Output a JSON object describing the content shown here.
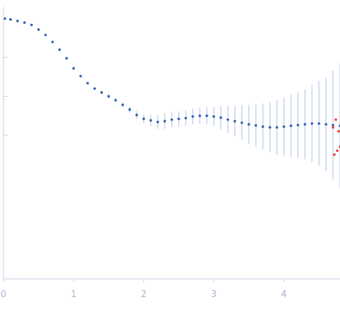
{
  "chart_data": {
    "type": "scatter",
    "title": "",
    "xlabel": "",
    "ylabel": "",
    "xlim": [
      0,
      4.8
    ],
    "ylim": [
      -6.7,
      0.3
    ],
    "y_scale": "log",
    "grid": false,
    "legend": "none",
    "x_ticks": [
      0,
      1,
      2,
      3,
      4
    ],
    "x_tick_labels": [
      "0",
      "1",
      "2",
      "3",
      "4"
    ],
    "y_ticks": [
      -1,
      -2,
      -3
    ],
    "colors": {
      "points": "#2e5fb5",
      "error_bars": "#a9bfe0",
      "outliers": "#e8413a",
      "axis": "#c7cfe0",
      "tick_label": "#a9b6cf"
    },
    "series": [
      {
        "role": "measured",
        "color": "#2e5fb5",
        "x": [
          0.02,
          0.1,
          0.2,
          0.3,
          0.4,
          0.5,
          0.6,
          0.7,
          0.8,
          0.9,
          1.0,
          1.1,
          1.2,
          1.3,
          1.4,
          1.5,
          1.6,
          1.7,
          1.8,
          1.9,
          2.0,
          2.1,
          2.2,
          2.3,
          2.4,
          2.5,
          2.6,
          2.7,
          2.8,
          2.9,
          3.0,
          3.1,
          3.2,
          3.3,
          3.4,
          3.5,
          3.6,
          3.7,
          3.8,
          3.9,
          4.0,
          4.1,
          4.2,
          4.3,
          4.4,
          4.5,
          4.6,
          4.7,
          4.8
        ],
        "y": [
          0.0,
          -0.02,
          -0.06,
          -0.1,
          -0.16,
          -0.28,
          -0.42,
          -0.6,
          -0.8,
          -1.02,
          -1.28,
          -1.48,
          -1.66,
          -1.8,
          -1.9,
          -2.0,
          -2.1,
          -2.22,
          -2.34,
          -2.48,
          -2.58,
          -2.62,
          -2.66,
          -2.64,
          -2.6,
          -2.58,
          -2.56,
          -2.52,
          -2.5,
          -2.5,
          -2.52,
          -2.55,
          -2.6,
          -2.64,
          -2.68,
          -2.72,
          -2.75,
          -2.78,
          -2.8,
          -2.8,
          -2.78,
          -2.76,
          -2.74,
          -2.72,
          -2.7,
          -2.7,
          -2.72,
          -2.74,
          -2.76
        ],
        "y_err": [
          0.01,
          0.01,
          0.01,
          0.01,
          0.01,
          0.01,
          0.01,
          0.01,
          0.02,
          0.02,
          0.02,
          0.02,
          0.03,
          0.03,
          0.04,
          0.05,
          0.06,
          0.07,
          0.08,
          0.1,
          0.12,
          0.15,
          0.18,
          0.2,
          0.2,
          0.2,
          0.2,
          0.2,
          0.2,
          0.22,
          0.25,
          0.3,
          0.35,
          0.4,
          0.45,
          0.5,
          0.55,
          0.6,
          0.65,
          0.7,
          0.75,
          0.8,
          0.85,
          0.9,
          1.0,
          1.1,
          1.2,
          1.4,
          1.6
        ]
      },
      {
        "role": "outliers",
        "color": "#e8413a",
        "x": [
          4.7,
          4.72,
          4.74,
          4.76,
          4.78,
          4.8
        ],
        "y": [
          -2.8,
          -3.5,
          -2.6,
          -3.4,
          -2.9,
          -3.3
        ]
      }
    ]
  }
}
